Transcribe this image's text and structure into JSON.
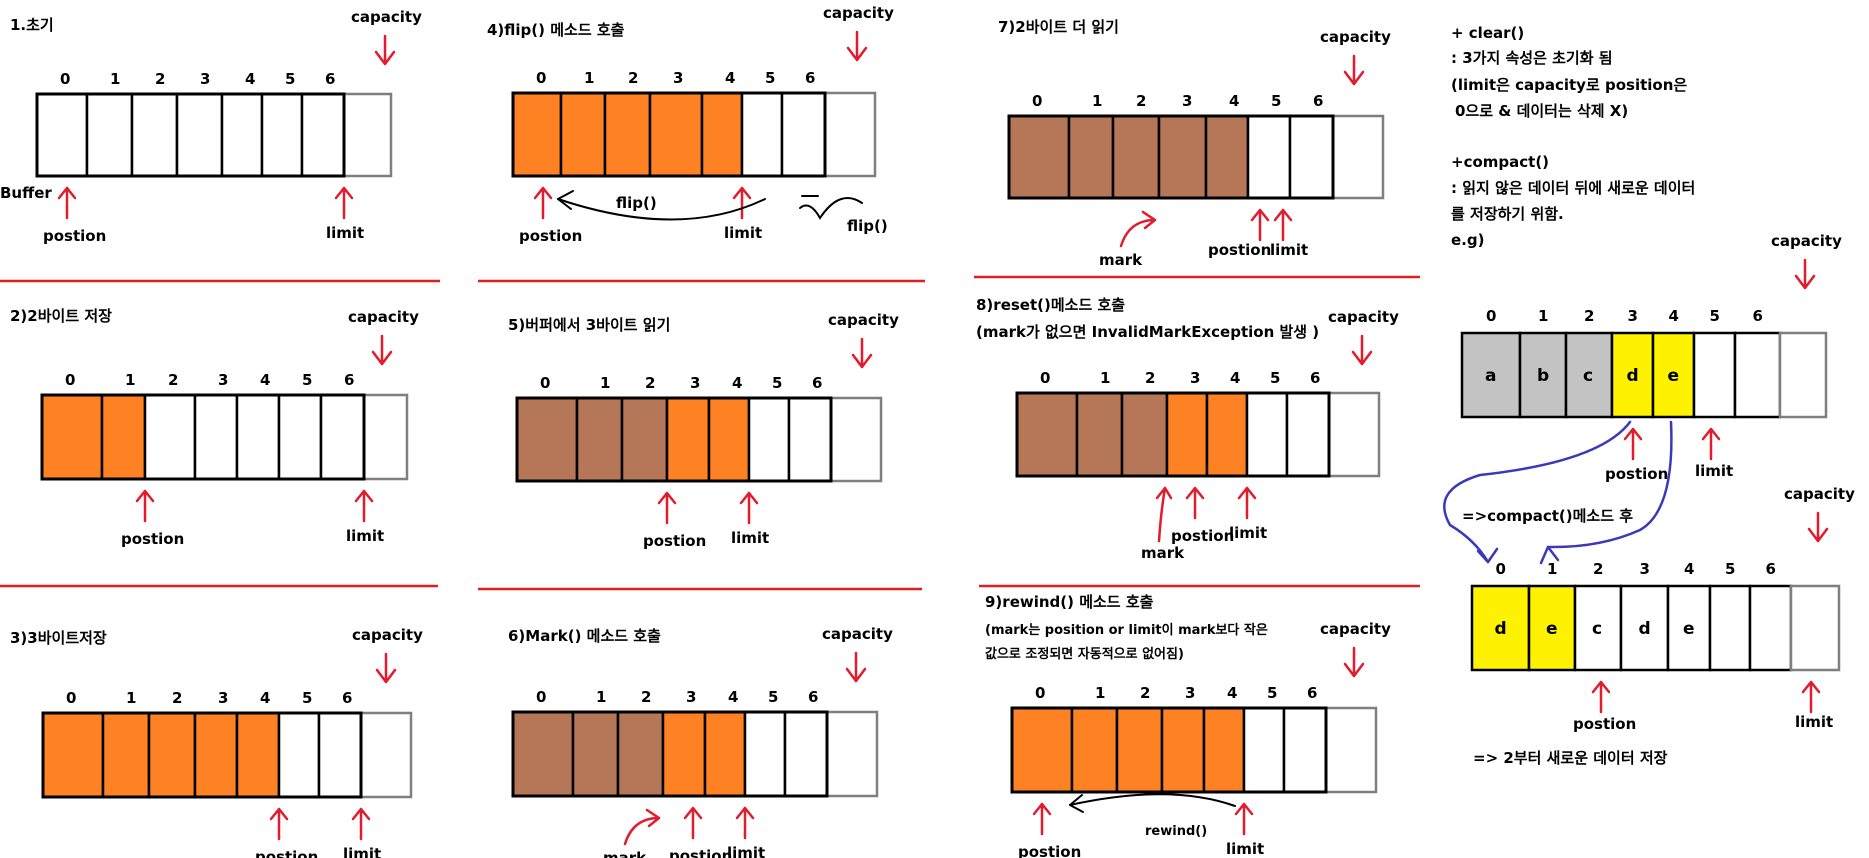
{
  "colors": {
    "orange": "#fe8224",
    "brown": "#b67758",
    "white": "#ffffff",
    "gray": "#c3c3c3",
    "yellow": "#fef200",
    "red": "#e21b2d",
    "blue": "#3a3ab8"
  },
  "common": {
    "capacity": "capacity",
    "position": "postion",
    "limit": "limit",
    "mark": "mark",
    "indices": [
      "0",
      "1",
      "2",
      "3",
      "4",
      "5",
      "6"
    ]
  },
  "panels": [
    {
      "title": "1.초기",
      "cells": [
        "w",
        "w",
        "w",
        "w",
        "w",
        "w",
        "w"
      ],
      "position_index": 0,
      "limit_index": 7,
      "buffer_label": "Buffer"
    },
    {
      "title": "4)flip() 메소드 호출",
      "cells": [
        "o",
        "o",
        "o",
        "o",
        "o",
        "w",
        "w"
      ],
      "position_index": 0,
      "limit_index": 5,
      "flip_label_1": "flip()",
      "flip_label_2": "flip()"
    },
    {
      "title": "7)2바이트 더 읽기",
      "cells": [
        "b",
        "b",
        "b",
        "b",
        "b",
        "w",
        "w"
      ],
      "position_index": 5,
      "limit_index": 5,
      "mark_index": 3
    },
    {
      "title": "2)2바이트 저장",
      "cells": [
        "o",
        "o",
        "w",
        "w",
        "w",
        "w",
        "w"
      ],
      "position_index": 2,
      "limit_index": 7
    },
    {
      "title": "5)버퍼에서 3바이트 읽기",
      "cells": [
        "b",
        "b",
        "b",
        "o",
        "o",
        "w",
        "w"
      ],
      "position_index": 3,
      "limit_index": 5
    },
    {
      "title": "8)reset()메소드 호출",
      "subtitle": "(mark가 없으면 InvalidMarkException 발생 )",
      "cells": [
        "b",
        "b",
        "b",
        "o",
        "o",
        "w",
        "w"
      ],
      "position_index": 3,
      "limit_index": 5,
      "mark_index": 3
    },
    {
      "title": "3)3바이트저장",
      "cells": [
        "o",
        "o",
        "o",
        "o",
        "o",
        "w",
        "w"
      ],
      "position_index": 5,
      "limit_index": 7
    },
    {
      "title": "6)Mark() 메소드 호출",
      "cells": [
        "b",
        "b",
        "b",
        "o",
        "o",
        "w",
        "w"
      ],
      "position_index": 3,
      "limit_index": 5,
      "mark_index": 3
    },
    {
      "title": "9)rewind() 메소드 호출",
      "subtitle": "(mark는 position or limit이 mark보다 작은",
      "subtitle2": "값으로 조정되면 자동적으로 없어짐)",
      "cells": [
        "o",
        "o",
        "o",
        "o",
        "o",
        "w",
        "w"
      ],
      "position_index": 0,
      "limit_index": 5,
      "rewind_label": "rewind()"
    }
  ],
  "notes": {
    "clear_title": "+ clear()",
    "clear_line1": ": 3가지 속성은 초기화 됨",
    "clear_line2": "(limit은 capacity로 position은",
    "clear_line3": "0으로 & 데이터는 삭제 X)",
    "compact_title": "+compact()",
    "compact_line1": ": 읽지 않은 데이터 뒤에 새로운 데이터",
    "compact_line2": "를 저장하기 위함.",
    "eg": "e.g)"
  },
  "compact_before": {
    "values": [
      "a",
      "b",
      "c",
      "d",
      "e",
      "",
      ""
    ],
    "cells": [
      "g",
      "g",
      "g",
      "y",
      "y",
      "w",
      "w"
    ]
  },
  "compact_after": {
    "values": [
      "d",
      "e",
      "c",
      "d",
      "e",
      "",
      ""
    ],
    "cells": [
      "y",
      "y",
      "w",
      "w",
      "w",
      "w",
      "w"
    ]
  },
  "compact_label": "=>compact()메소드 후",
  "compact_result": "=> 2부터 새로운 데이터 저장"
}
